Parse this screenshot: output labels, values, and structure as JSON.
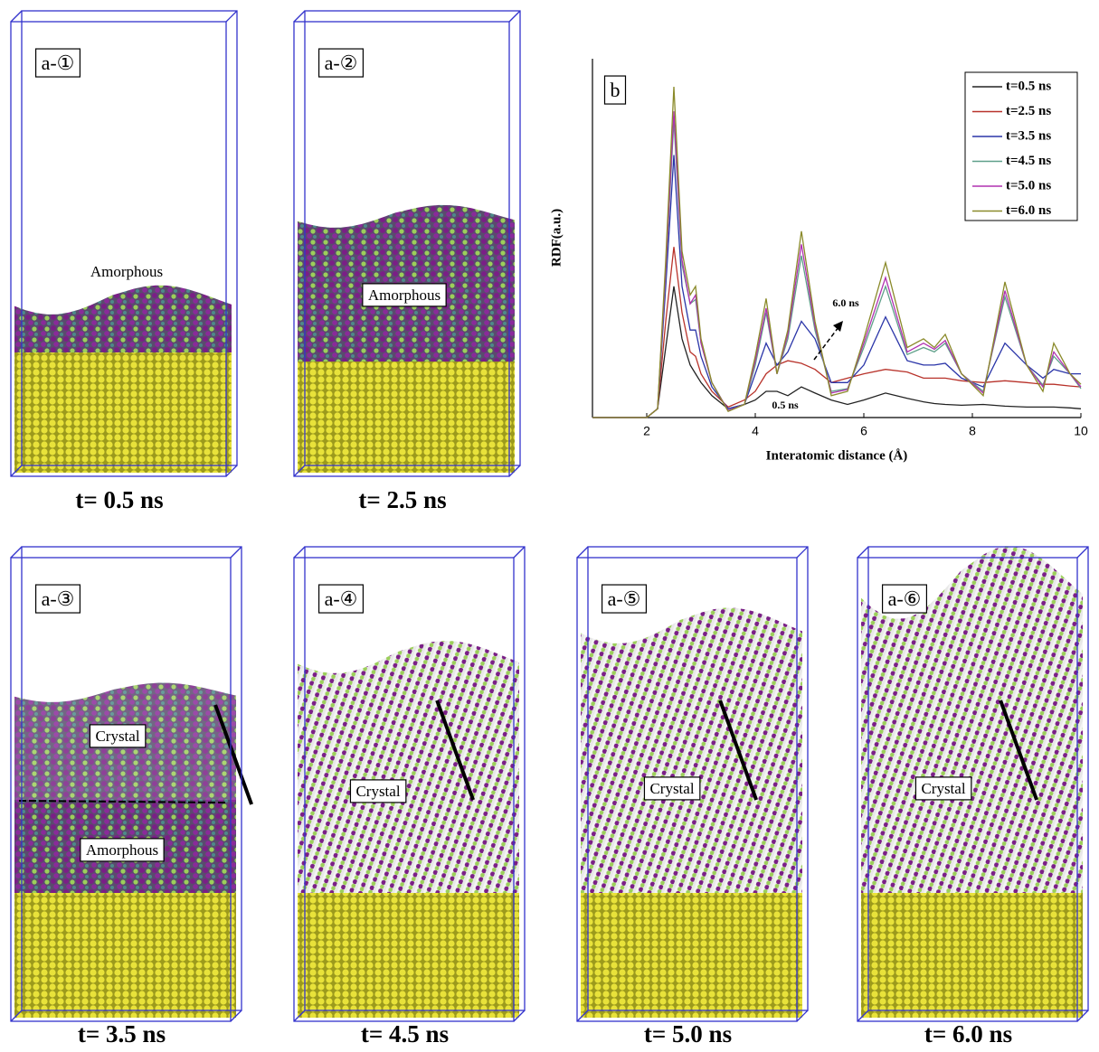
{
  "panels": [
    {
      "label": "a-①",
      "caption": "t= 0.5 ns",
      "regions": [
        "Amorphous"
      ]
    },
    {
      "label": "a-②",
      "caption": "t= 2.5 ns",
      "regions": [
        "Amorphous"
      ]
    },
    {
      "label": "a-③",
      "caption": "t= 3.5 ns",
      "regions": [
        "Crystal",
        "Amorphous"
      ]
    },
    {
      "label": "a-④",
      "caption": "t= 4.5 ns",
      "regions": [
        "Crystal"
      ]
    },
    {
      "label": "a-⑤",
      "caption": "t= 5.0 ns",
      "regions": [
        "Crystal"
      ]
    },
    {
      "label": "a-⑥",
      "caption": "t= 6.0 ns",
      "regions": [
        "Crystal"
      ]
    }
  ],
  "chart_data": {
    "type": "line",
    "panel_label": "b",
    "y_label": "RDF(a.u.)",
    "x_label": "Interatomic distance (Å)",
    "annotations": [
      "6.0 ns",
      "0.5 ns"
    ],
    "xlim": [
      1,
      10
    ],
    "xticks": [
      2,
      4,
      6,
      8,
      10
    ],
    "ylim": [
      0,
      4.1
    ],
    "x": [
      1.0,
      2.0,
      2.2,
      2.35,
      2.5,
      2.65,
      2.8,
      2.9,
      3.0,
      3.2,
      3.5,
      3.8,
      4.0,
      4.2,
      4.4,
      4.6,
      4.85,
      5.1,
      5.4,
      5.7,
      6.0,
      6.4,
      6.8,
      7.1,
      7.3,
      7.5,
      7.8,
      8.2,
      8.6,
      9.0,
      9.3,
      9.5,
      9.8,
      10.0
    ],
    "series": [
      {
        "name": "t=0.5 ns",
        "color": "#222222",
        "values": [
          0,
          0,
          0.1,
          0.8,
          1.5,
          0.9,
          0.6,
          0.5,
          0.4,
          0.25,
          0.1,
          0.15,
          0.2,
          0.3,
          0.3,
          0.25,
          0.35,
          0.28,
          0.2,
          0.15,
          0.2,
          0.28,
          0.22,
          0.18,
          0.16,
          0.15,
          0.14,
          0.15,
          0.13,
          0.12,
          0.12,
          0.12,
          0.11,
          0.1
        ]
      },
      {
        "name": "t=2.5 ns",
        "color": "#b8322a",
        "values": [
          0,
          0,
          0.1,
          1.1,
          1.95,
          1.2,
          0.75,
          0.7,
          0.5,
          0.3,
          0.12,
          0.2,
          0.3,
          0.5,
          0.6,
          0.65,
          0.62,
          0.55,
          0.4,
          0.45,
          0.5,
          0.55,
          0.52,
          0.45,
          0.45,
          0.45,
          0.42,
          0.4,
          0.42,
          0.4,
          0.38,
          0.38,
          0.36,
          0.35
        ]
      },
      {
        "name": "t=3.5 ns",
        "color": "#2a35a8",
        "values": [
          0,
          0,
          0.1,
          1.5,
          3.0,
          1.5,
          1.0,
          1.0,
          0.7,
          0.35,
          0.1,
          0.15,
          0.5,
          0.85,
          0.6,
          0.75,
          1.1,
          0.9,
          0.4,
          0.4,
          0.6,
          1.15,
          0.65,
          0.6,
          0.6,
          0.62,
          0.45,
          0.35,
          0.85,
          0.6,
          0.45,
          0.55,
          0.5,
          0.5
        ]
      },
      {
        "name": "t=4.5 ns",
        "color": "#5fa08a",
        "values": [
          0,
          0,
          0.1,
          1.65,
          3.4,
          1.75,
          1.3,
          1.35,
          0.85,
          0.4,
          0.08,
          0.15,
          0.6,
          1.2,
          0.5,
          0.9,
          1.85,
          1.0,
          0.3,
          0.33,
          0.8,
          1.5,
          0.72,
          0.8,
          0.75,
          0.85,
          0.5,
          0.3,
          1.38,
          0.6,
          0.37,
          0.7,
          0.5,
          0.33
        ]
      },
      {
        "name": "t=5.0 ns",
        "color": "#b030b0",
        "values": [
          0,
          0,
          0.1,
          1.7,
          3.5,
          1.8,
          1.3,
          1.4,
          0.85,
          0.4,
          0.08,
          0.15,
          0.65,
          1.25,
          0.5,
          0.95,
          1.98,
          1.05,
          0.28,
          0.32,
          0.85,
          1.6,
          0.75,
          0.85,
          0.78,
          0.88,
          0.5,
          0.28,
          1.45,
          0.6,
          0.35,
          0.75,
          0.5,
          0.35
        ]
      },
      {
        "name": "t=6.0 ns",
        "color": "#8a8a2a",
        "values": [
          0,
          0,
          0.1,
          1.8,
          3.78,
          1.9,
          1.4,
          1.5,
          0.9,
          0.4,
          0.07,
          0.15,
          0.7,
          1.36,
          0.5,
          1.0,
          2.13,
          1.1,
          0.25,
          0.3,
          0.9,
          1.77,
          0.8,
          0.9,
          0.8,
          0.95,
          0.5,
          0.25,
          1.55,
          0.6,
          0.3,
          0.85,
          0.5,
          0.38
        ]
      }
    ]
  }
}
